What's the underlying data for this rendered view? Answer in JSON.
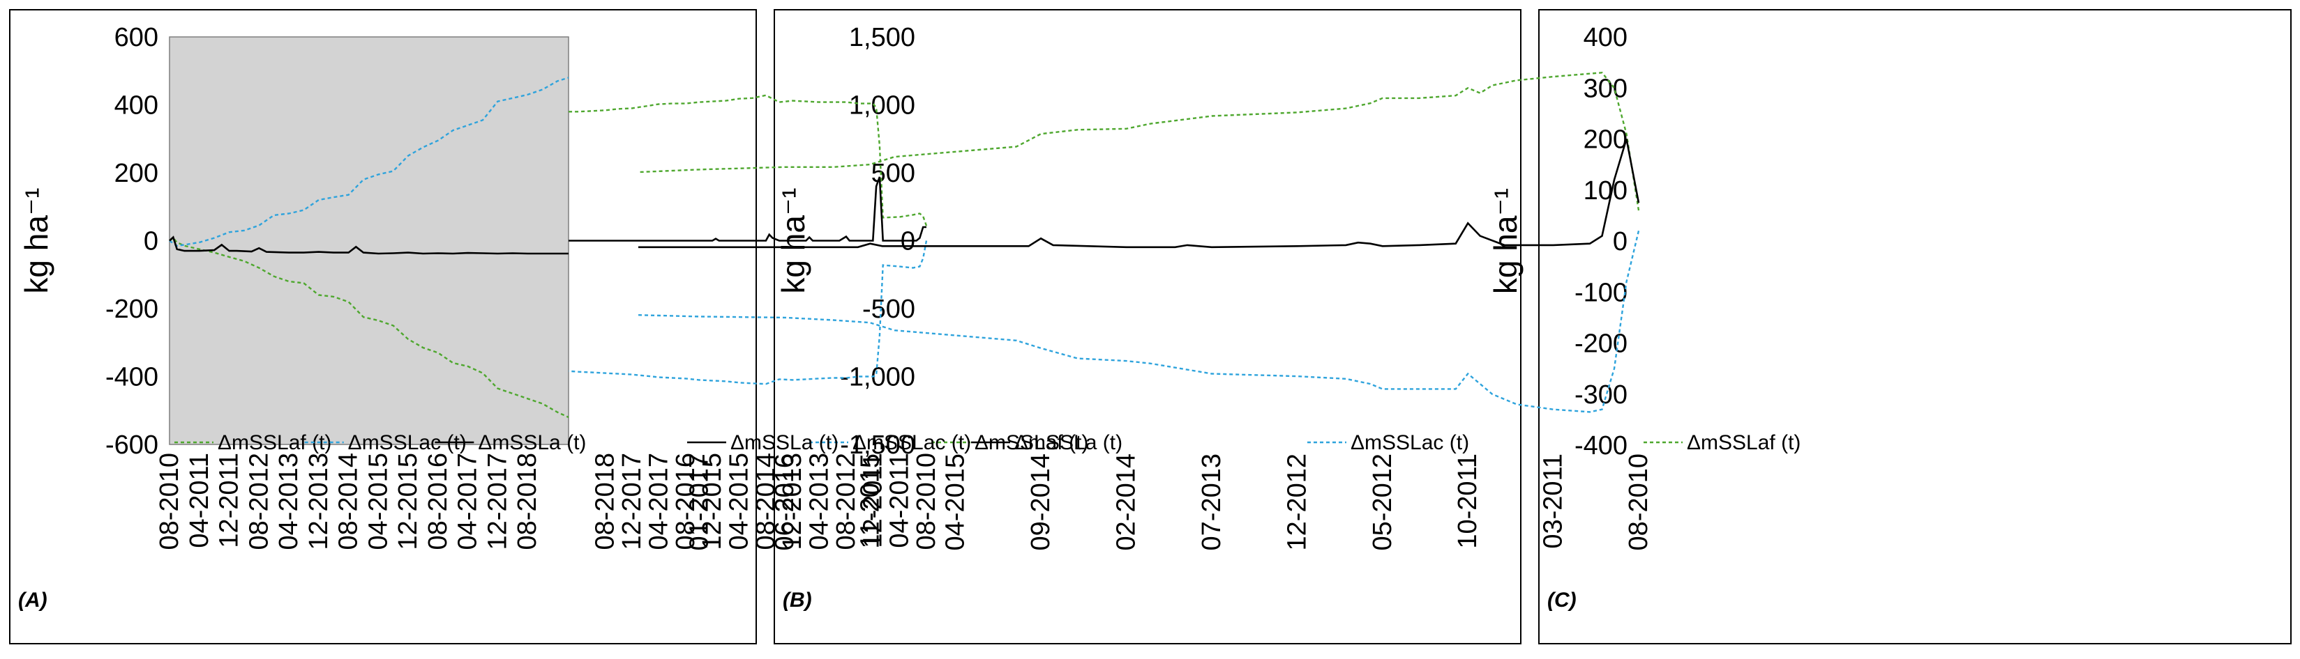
{
  "figure": {
    "colors": {
      "plot_background": "#d3d3d3",
      "series_af": "#4ea72e",
      "series_ac": "#2ea3dc",
      "series_a": "#000000"
    }
  },
  "chart_data": [
    {
      "type": "line",
      "panel_label": "(A)",
      "ylabel": "kg ha⁻¹",
      "ylim": [
        -600,
        600
      ],
      "yticks": [
        -600,
        -400,
        -200,
        0,
        200,
        400,
        600
      ],
      "ytick_labels": [
        "-600",
        "-400",
        "-200",
        "0",
        "200",
        "400",
        "600"
      ],
      "x_ticks": [
        "08-2010",
        "04-2011",
        "12-2011",
        "08-2012",
        "04-2013",
        "12-2013",
        "08-2014",
        "04-2015",
        "12-2015",
        "08-2016",
        "04-2017",
        "12-2017",
        "08-2018"
      ],
      "xlim": [
        "08-2010",
        "07-2019"
      ],
      "grid": false,
      "legend_position": "bottom",
      "series": [
        {
          "name": "ΔmSSLaf (t)",
          "style": "dashed",
          "color": "#4ea72e",
          "x": [
            "08-2010",
            "09-2010",
            "10-2010",
            "12-2010",
            "04-2011",
            "08-2011",
            "12-2011",
            "04-2012",
            "08-2012",
            "12-2012",
            "04-2013",
            "08-2013",
            "12-2013",
            "04-2014",
            "08-2014",
            "12-2014",
            "04-2015",
            "08-2015",
            "12-2015",
            "04-2016",
            "08-2016",
            "12-2016",
            "04-2017",
            "08-2017",
            "12-2017",
            "04-2018",
            "08-2018",
            "12-2018",
            "04-2019",
            "07-2019"
          ],
          "y": [
            0,
            8,
            -5,
            -15,
            -25,
            -35,
            -48,
            -60,
            -80,
            -105,
            -120,
            -125,
            -160,
            -165,
            -180,
            -225,
            -235,
            -250,
            -290,
            -315,
            -330,
            -360,
            -370,
            -390,
            -435,
            -450,
            -465,
            -480,
            -505,
            -520
          ]
        },
        {
          "name": "ΔmSSLac (t)",
          "style": "dashed",
          "color": "#2ea3dc",
          "x": [
            "08-2010",
            "09-2010",
            "10-2010",
            "12-2010",
            "04-2011",
            "08-2011",
            "12-2011",
            "04-2012",
            "08-2012",
            "12-2012",
            "04-2013",
            "08-2013",
            "12-2013",
            "04-2014",
            "08-2014",
            "12-2014",
            "04-2015",
            "08-2015",
            "12-2015",
            "04-2016",
            "08-2016",
            "12-2016",
            "04-2017",
            "08-2017",
            "12-2017",
            "04-2018",
            "08-2018",
            "12-2018",
            "04-2019",
            "07-2019"
          ],
          "y": [
            0,
            -8,
            -15,
            -12,
            -5,
            8,
            25,
            30,
            45,
            75,
            80,
            90,
            120,
            128,
            135,
            180,
            195,
            205,
            250,
            275,
            295,
            325,
            340,
            355,
            410,
            420,
            430,
            445,
            470,
            480
          ]
        },
        {
          "name": "ΔmSSLa (t)",
          "style": "solid",
          "color": "#000000",
          "x": [
            "08-2010",
            "09-2010",
            "10-2010",
            "12-2010",
            "04-2011",
            "08-2011",
            "10-2011",
            "12-2011",
            "02-2012",
            "06-2012",
            "08-2012",
            "10-2012",
            "04-2013",
            "08-2013",
            "12-2013",
            "04-2014",
            "08-2014",
            "10-2014",
            "12-2014",
            "04-2015",
            "08-2015",
            "12-2015",
            "04-2016",
            "08-2016",
            "12-2016",
            "04-2017",
            "08-2017",
            "12-2017",
            "04-2018",
            "08-2018",
            "12-2018",
            "04-2019",
            "07-2019"
          ],
          "y": [
            0,
            10,
            -25,
            -30,
            -30,
            -28,
            -12,
            -30,
            -30,
            -32,
            -22,
            -33,
            -35,
            -35,
            -33,
            -35,
            -35,
            -18,
            -35,
            -38,
            -37,
            -35,
            -38,
            -37,
            -38,
            -36,
            -37,
            -38,
            -37,
            -38,
            -38,
            -38,
            -38
          ]
        }
      ]
    },
    {
      "type": "line",
      "panel_label": "(B)",
      "ylabel": "kg ha⁻¹",
      "ylim": [
        -1500,
        1500
      ],
      "yticks": [
        -1500,
        -1000,
        -500,
        0,
        500,
        1000,
        1500
      ],
      "ytick_labels": [
        "-1,500",
        "-1,000",
        "-500",
        "0",
        "500",
        "1,000",
        "1,500"
      ],
      "x_ticks": [
        "08-2010",
        "04-2011",
        "12-2011",
        "08-2012",
        "04-2013",
        "12-2013",
        "08-2014",
        "04-2015",
        "12-2015",
        "08-2016",
        "04-2017",
        "12-2017",
        "08-2018"
      ],
      "xlim": [
        "08-2010",
        "07-2019"
      ],
      "grid": false,
      "legend_position": "bottom",
      "series": [
        {
          "name": "ΔmSSLaf (t)",
          "style": "dashed",
          "color": "#4ea72e",
          "x": [
            "08-2010",
            "09-2010",
            "10-2010",
            "12-2010",
            "04-2011",
            "09-2011",
            "10-2011",
            "11-2011",
            "12-2011",
            "04-2012",
            "08-2012",
            "12-2012",
            "04-2013",
            "08-2013",
            "12-2013",
            "04-2014",
            "08-2014",
            "12-2014",
            "04-2015",
            "08-2015",
            "12-2015",
            "04-2016",
            "08-2016",
            "12-2016",
            "04-2017",
            "08-2017",
            "12-2017",
            "04-2018",
            "08-2018",
            "12-2018",
            "04-2019",
            "07-2019"
          ],
          "y": [
            110,
            180,
            200,
            190,
            175,
            170,
            700,
            980,
            1010,
            1010,
            1020,
            1020,
            1020,
            1025,
            1030,
            1020,
            1070,
            1050,
            1045,
            1030,
            1025,
            1020,
            1010,
            1010,
            1005,
            990,
            975,
            970,
            960,
            955,
            950,
            950
          ]
        },
        {
          "name": "ΔmSSLac (t)",
          "style": "dashed",
          "color": "#2ea3dc",
          "x": [
            "08-2010",
            "09-2010",
            "10-2010",
            "12-2010",
            "04-2011",
            "09-2011",
            "10-2011",
            "11-2011",
            "12-2011",
            "04-2012",
            "08-2012",
            "12-2012",
            "04-2013",
            "08-2013",
            "12-2013",
            "04-2014",
            "08-2014",
            "12-2014",
            "04-2015",
            "08-2015",
            "12-2015",
            "04-2016",
            "08-2016",
            "12-2016",
            "04-2017",
            "08-2017",
            "12-2017",
            "04-2018",
            "08-2018",
            "12-2018",
            "04-2019",
            "07-2019"
          ],
          "y": [
            0,
            -130,
            -190,
            -200,
            -190,
            -180,
            -700,
            -990,
            -1000,
            -1000,
            -1010,
            -1010,
            -1015,
            -1020,
            -1025,
            -1020,
            -1055,
            -1050,
            -1045,
            -1035,
            -1030,
            -1025,
            -1015,
            -1010,
            -1005,
            -995,
            -985,
            -980,
            -975,
            -970,
            -965,
            -960
          ]
        },
        {
          "name": "ΔmSSLa (t)",
          "style": "solid",
          "color": "#000000",
          "x": [
            "08-2010",
            "09-2010",
            "10-2010",
            "11-2010",
            "04-2011",
            "09-2011",
            "10-2011",
            "11-2011",
            "12-2011",
            "04-2012",
            "07-2012",
            "08-2012",
            "10-2012",
            "04-2013",
            "06-2013",
            "07-2013",
            "08-2013",
            "04-2014",
            "06-2014",
            "07-2014",
            "08-2014",
            "12-2014",
            "08-2015",
            "10-2015",
            "11-2015",
            "12-2015",
            "08-2016",
            "08-2017",
            "08-2018",
            "07-2019"
          ],
          "y": [
            100,
            100,
            20,
            0,
            0,
            0,
            470,
            400,
            0,
            0,
            0,
            30,
            0,
            0,
            0,
            25,
            0,
            0,
            20,
            45,
            0,
            0,
            0,
            0,
            15,
            0,
            0,
            0,
            0,
            0
          ]
        }
      ]
    },
    {
      "type": "line",
      "panel_label": "(C)",
      "ylabel": "kg ha⁻¹",
      "ylim": [
        -400,
        400
      ],
      "yticks": [
        -400,
        -300,
        -200,
        -100,
        0,
        100,
        200,
        300,
        400
      ],
      "ytick_labels": [
        "-400",
        "-300",
        "-200",
        "-100",
        "0",
        "100",
        "200",
        "300",
        "400"
      ],
      "x_ticks": [
        "08-2010",
        "03-2011",
        "10-2011",
        "05-2012",
        "12-2012",
        "07-2013",
        "02-2014",
        "09-2014",
        "04-2015",
        "11-2015",
        "06-2016",
        "01-2017"
      ],
      "xlim": [
        "08-2010",
        "06-2017"
      ],
      "grid": false,
      "legend_position": "bottom",
      "series": [
        {
          "name": "ΔmSSLaf (t)",
          "style": "dashed",
          "color": "#4ea72e",
          "x": [
            "08-2010",
            "09-2010",
            "10-2010",
            "11-2010",
            "12-2010",
            "03-2011",
            "06-2011",
            "08-2011",
            "09-2011",
            "10-2011",
            "11-2011",
            "02-2012",
            "05-2012",
            "06-2012",
            "08-2012",
            "12-2012",
            "07-2013",
            "12-2013",
            "02-2014",
            "06-2014",
            "09-2014",
            "11-2014",
            "04-2015",
            "09-2015",
            "11-2015",
            "02-2016",
            "06-2016",
            "01-2017",
            "06-2017"
          ],
          "y": [
            60,
            210,
            300,
            330,
            328,
            322,
            315,
            305,
            290,
            300,
            285,
            280,
            280,
            270,
            260,
            252,
            245,
            230,
            220,
            218,
            210,
            185,
            175,
            165,
            150,
            145,
            145,
            140,
            135
          ]
        },
        {
          "name": "ΔmSSLac (t)",
          "style": "dashed",
          "color": "#2ea3dc",
          "x": [
            "08-2010",
            "09-2010",
            "10-2010",
            "11-2010",
            "12-2010",
            "03-2011",
            "06-2011",
            "08-2011",
            "09-2011",
            "10-2011",
            "11-2011",
            "02-2012",
            "05-2012",
            "06-2012",
            "08-2012",
            "12-2012",
            "07-2013",
            "12-2013",
            "02-2014",
            "06-2014",
            "09-2014",
            "11-2014",
            "04-2015",
            "09-2015",
            "11-2015",
            "02-2016",
            "06-2016",
            "01-2017",
            "06-2017"
          ],
          "y": [
            20,
            -80,
            -250,
            -330,
            -335,
            -330,
            -320,
            -300,
            -280,
            -260,
            -290,
            -290,
            -290,
            -280,
            -270,
            -265,
            -260,
            -240,
            -235,
            -230,
            -210,
            -195,
            -185,
            -175,
            -160,
            -155,
            -150,
            -148,
            -145
          ]
        },
        {
          "name": "ΔmSSLa (t)",
          "style": "solid",
          "color": "#000000",
          "x": [
            "08-2010",
            "09-2010",
            "10-2010",
            "11-2010",
            "12-2010",
            "03-2011",
            "07-2011",
            "09-2011",
            "10-2011",
            "11-2011",
            "02-2012",
            "05-2012",
            "06-2012",
            "07-2012",
            "08-2012",
            "12-2012",
            "07-2013",
            "09-2013",
            "10-2013",
            "02-2014",
            "08-2014",
            "09-2014",
            "10-2014",
            "04-2015",
            "10-2015",
            "11-2015",
            "12-2015",
            "06-2016",
            "01-2017",
            "06-2017"
          ],
          "y": [
            75,
            200,
            120,
            10,
            -5,
            -8,
            -8,
            10,
            35,
            -5,
            -8,
            -10,
            -5,
            -3,
            -8,
            -10,
            -12,
            -8,
            -12,
            -12,
            -8,
            5,
            -10,
            -10,
            -10,
            -5,
            -12,
            -12,
            -12,
            -12
          ]
        }
      ]
    }
  ]
}
